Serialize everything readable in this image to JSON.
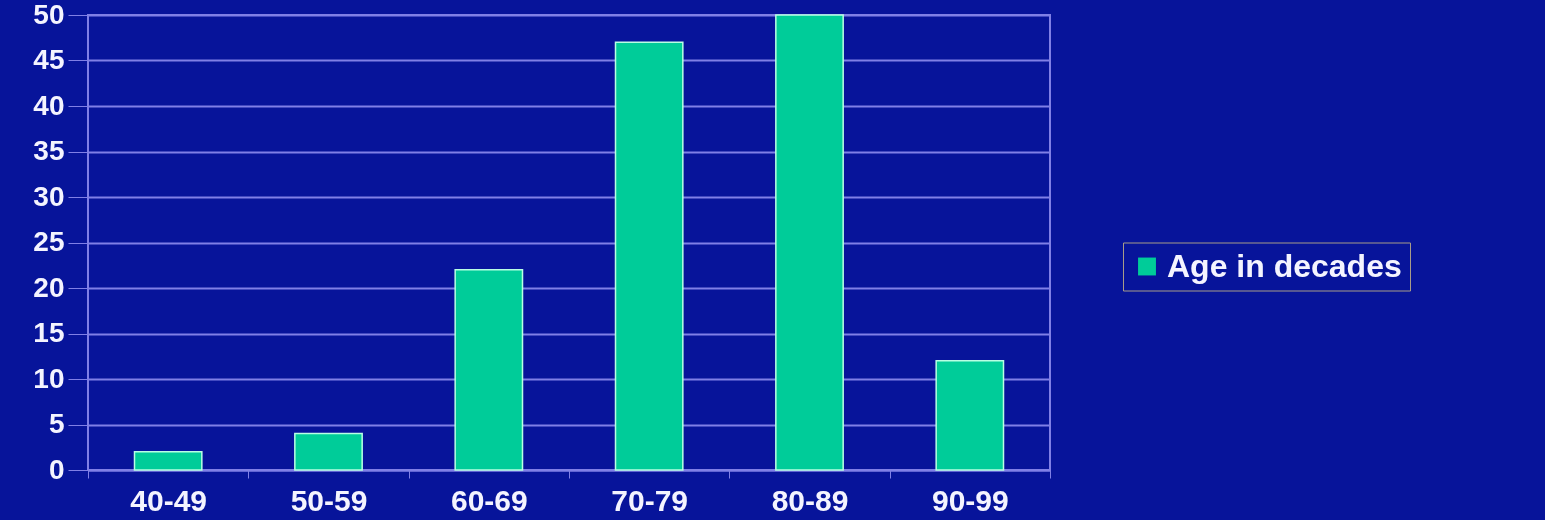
{
  "chart_data": {
    "type": "bar",
    "categories": [
      "40-49",
      "50-59",
      "60-69",
      "70-79",
      "80-89",
      "90-99"
    ],
    "series": [
      {
        "name": "Age in decades",
        "color": "#00cc99",
        "values": [
          2,
          4,
          22,
          47,
          50,
          12
        ]
      }
    ],
    "ylim": [
      0,
      50
    ],
    "yticks": [
      0,
      5,
      10,
      15,
      20,
      25,
      30,
      35,
      40,
      45,
      50
    ],
    "grid": "y",
    "legend": "right"
  }
}
